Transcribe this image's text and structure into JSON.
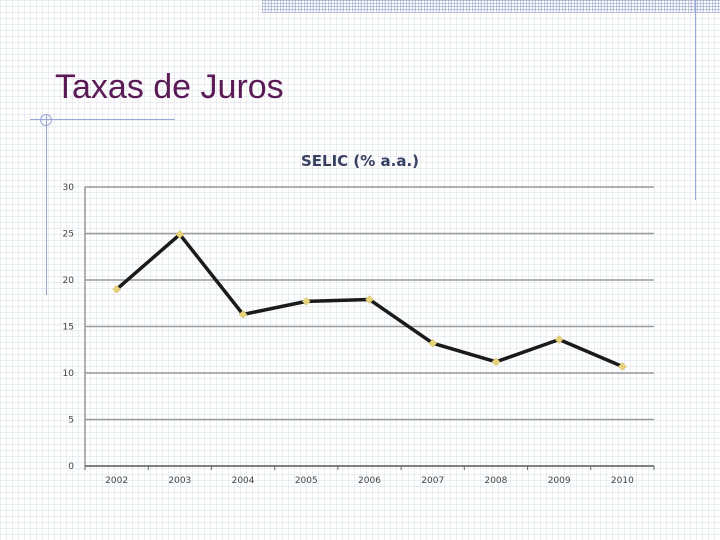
{
  "slide": {
    "title": "Taxas de Juros"
  },
  "colors": {
    "title": "#5a1a55",
    "line": "#1a1a1a",
    "marker": "#e6d27a",
    "grid": "#9a9a9a"
  },
  "chart_data": {
    "type": "line",
    "title": "SELIC (% a.a.)",
    "xlabel": "",
    "ylabel": "",
    "categories": [
      "2002",
      "2003",
      "2004",
      "2005",
      "2006",
      "2007",
      "2008",
      "2009",
      "2010"
    ],
    "series": [
      {
        "values": [
          19.0,
          24.9,
          16.3,
          17.7,
          17.9,
          13.2,
          11.2,
          13.6,
          10.7
        ]
      }
    ],
    "ylim": [
      0,
      30
    ],
    "yticks": [
      "0",
      "5",
      "10",
      "15",
      "20",
      "25",
      "30"
    ],
    "grid": true,
    "legend": "none"
  }
}
